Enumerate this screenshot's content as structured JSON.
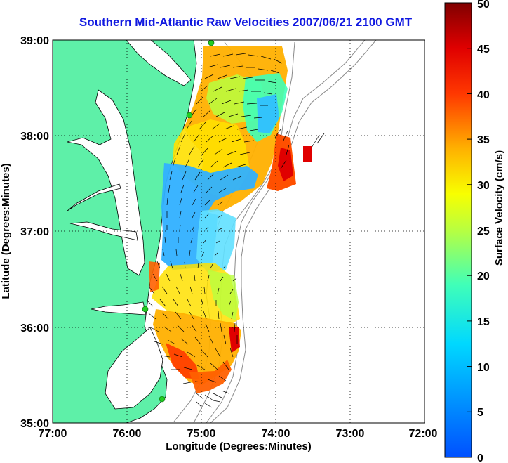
{
  "title": "Southern Mid-Atlantic Raw Velocities 2007/06/21 2100 GMT",
  "x_axis": {
    "label": "Longitude (Degrees:Minutes)",
    "ticks": [
      "77:00",
      "76:00",
      "75:00",
      "74:00",
      "73:00",
      "72:00"
    ]
  },
  "y_axis": {
    "label": "Latitude (Degrees:Minutes)",
    "ticks": [
      "39:00",
      "38:00",
      "37:00",
      "36:00",
      "35:00"
    ]
  },
  "colorbar": {
    "label": "Surface Velocity (cm/s)",
    "ticks": [
      "50",
      "45",
      "40",
      "35",
      "30",
      "25",
      "20",
      "15",
      "10",
      "5",
      "0"
    ],
    "min": 0,
    "max": 50
  },
  "colors": {
    "land": "#5ef0a8",
    "title": "#1018e0",
    "station": "#22cc22"
  },
  "map": {
    "lon_range": [
      -77,
      -72
    ],
    "lat_range": [
      35,
      39
    ],
    "grid": "dotted",
    "features": [
      "land",
      "coastline",
      "bathymetry-contours",
      "velocity-field",
      "current-vectors",
      "hf-radar-stations"
    ]
  }
}
